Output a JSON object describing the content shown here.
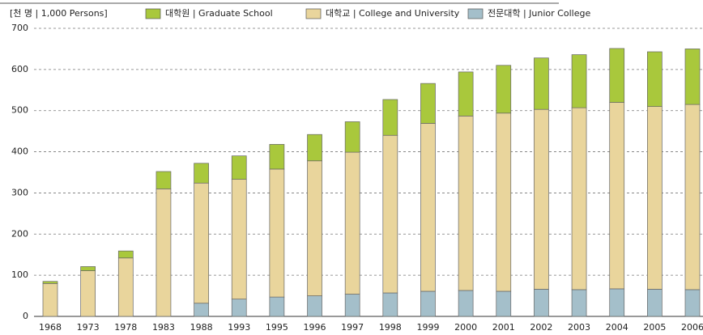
{
  "chart_data": {
    "type": "stacked_bar",
    "unit": "[천 명 | 1,000 Persons]",
    "categories": [
      "1968",
      "1973",
      "1978",
      "1983",
      "1988",
      "1993",
      "1995",
      "1996",
      "1997",
      "1998",
      "1999",
      "2000",
      "2001",
      "2002",
      "2003",
      "2004",
      "2005",
      "2006"
    ],
    "series": [
      {
        "name": "대학원 | Graduate School",
        "color": "#a9c83c",
        "values": [
          5,
          10,
          17,
          42,
          48,
          57,
          60,
          64,
          74,
          87,
          97,
          107,
          116,
          125,
          129,
          131,
          133,
          135
        ]
      },
      {
        "name": "대학교 | College and University",
        "color": "#e9d59c",
        "values": [
          80,
          111,
          142,
          310,
          292,
          291,
          311,
          328,
          345,
          383,
          408,
          424,
          433,
          437,
          442,
          453,
          444,
          450
        ]
      },
      {
        "name": "전문대학 | Junior College",
        "color": "#a4bfca",
        "values": [
          0,
          0,
          0,
          0,
          32,
          42,
          47,
          50,
          54,
          57,
          61,
          63,
          61,
          66,
          65,
          67,
          66,
          65
        ]
      }
    ],
    "ylim": [
      0,
      700
    ],
    "yticks": [
      0,
      100,
      200,
      300,
      400,
      500,
      600,
      700
    ],
    "grid": true
  }
}
